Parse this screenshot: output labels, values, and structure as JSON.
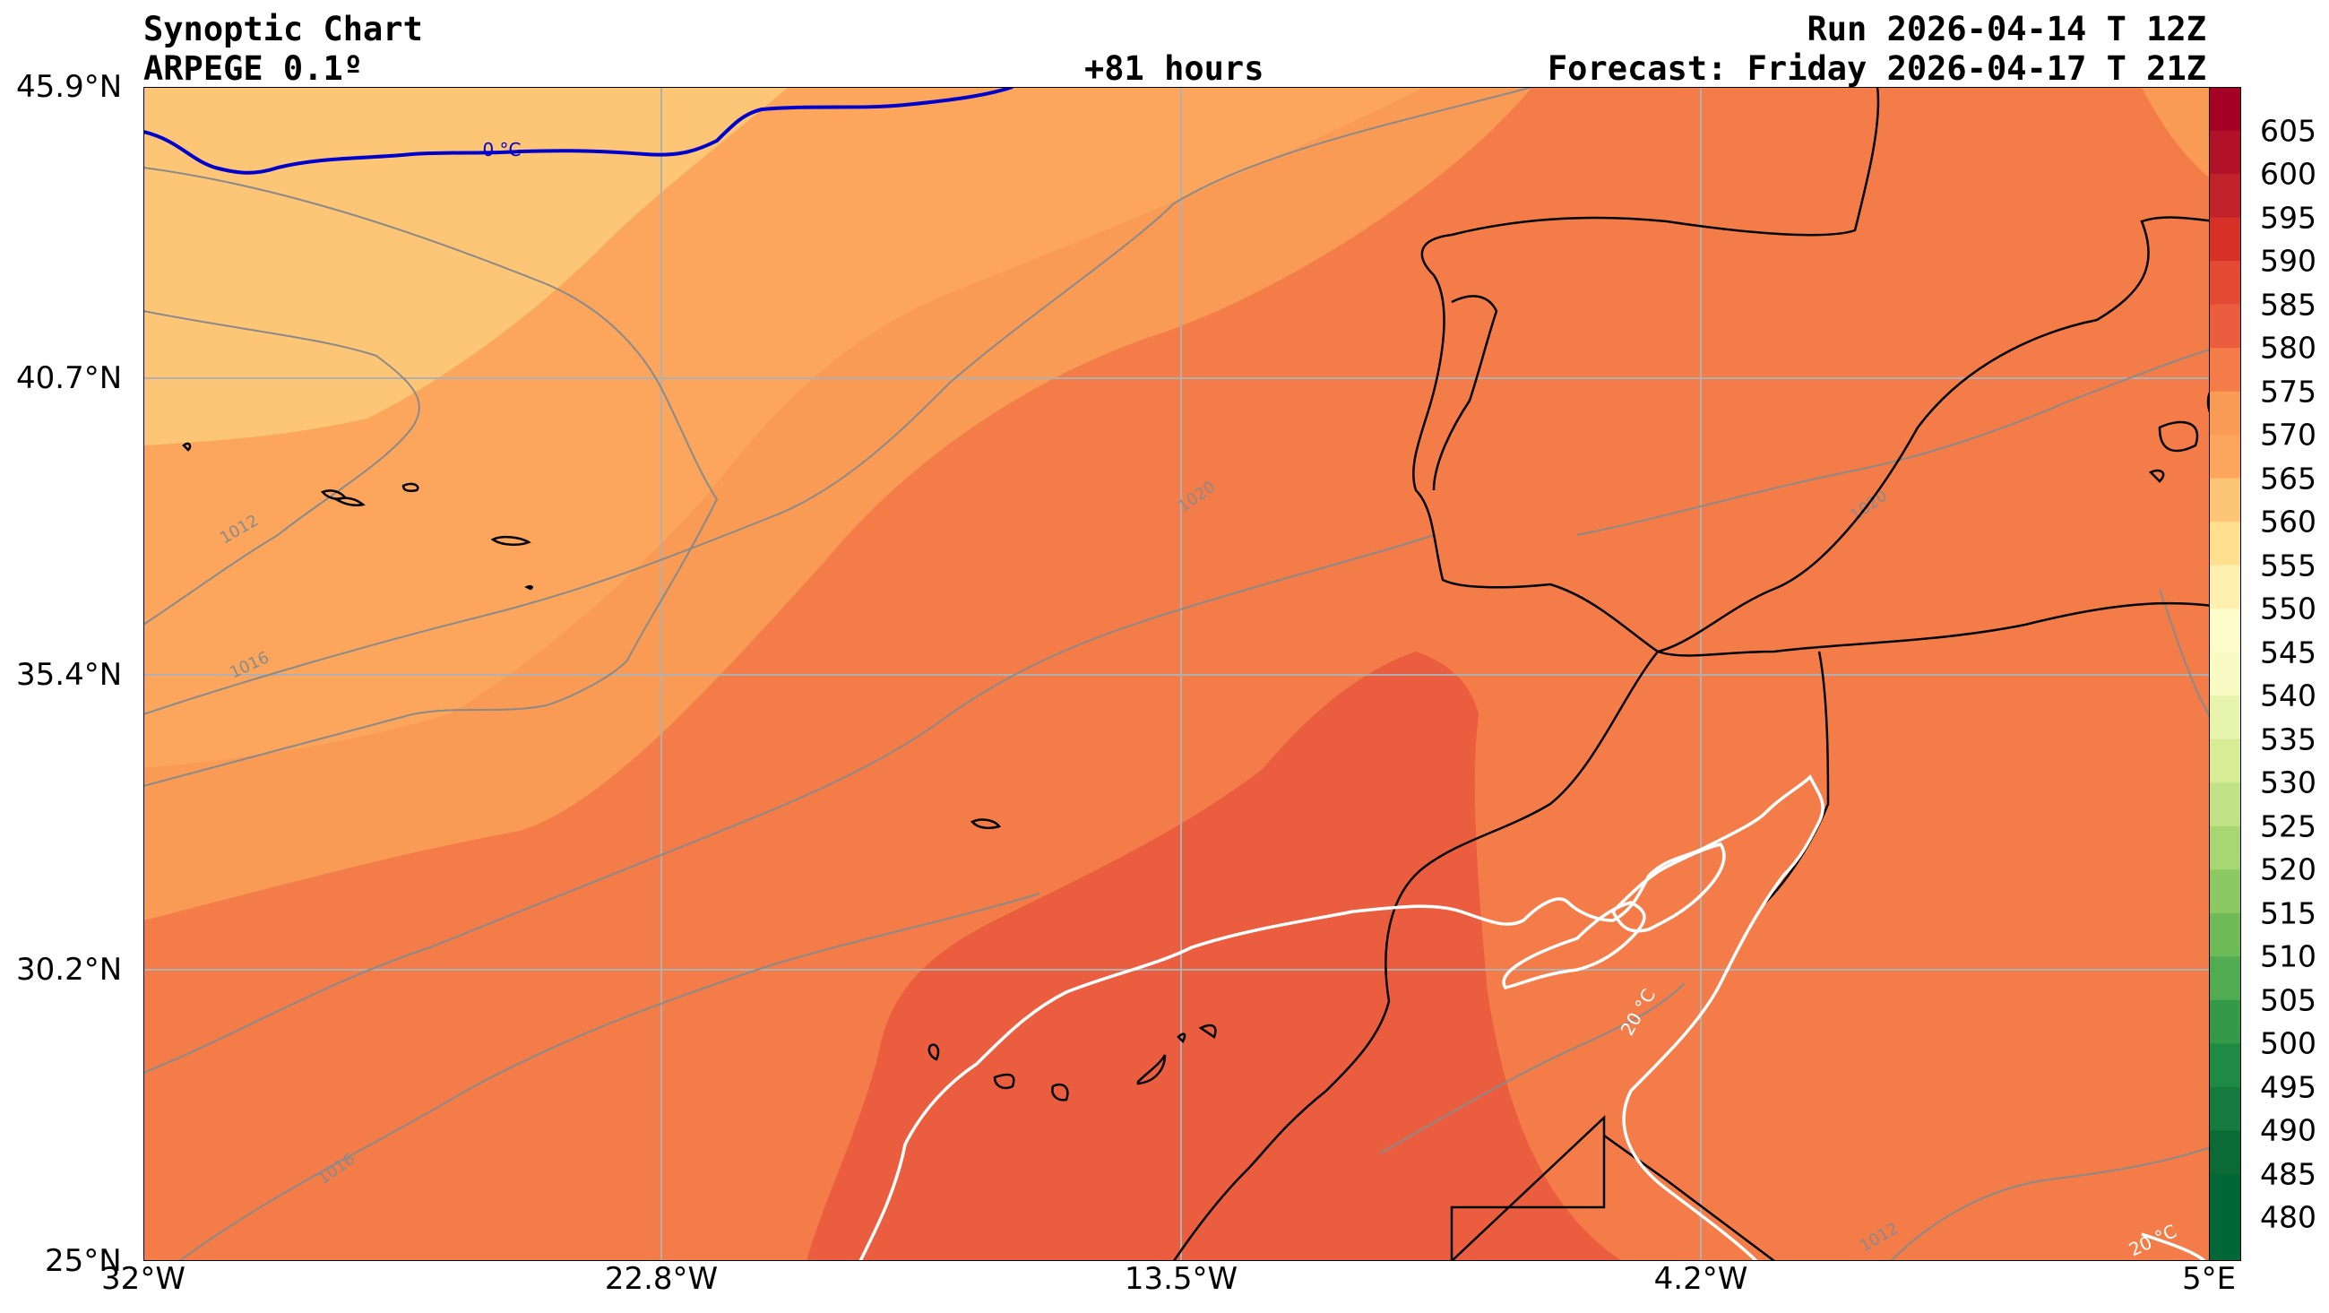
{
  "header": {
    "title": "Synoptic Chart",
    "model": "ARPEGE 0.1º",
    "lead": "+81 hours",
    "run": "Run 2026-04-14 T 12Z",
    "forecast": "Forecast: Friday 2026-04-17 T 21Z"
  },
  "axes": {
    "lat_labels": [
      "45.9°N",
      "40.7°N",
      "35.4°N",
      "30.2°N",
      "25°N"
    ],
    "lon_labels": [
      "32°W",
      "22.8°W",
      "13.5°W",
      "4.2°W",
      "5°E"
    ]
  },
  "contour_labels": {
    "freezing": "0 °C",
    "warm_isotherm": "20 °C",
    "isobars": [
      "1012",
      "1016",
      "1020"
    ]
  },
  "colorbar": {
    "levels": [
      "605",
      "600",
      "595",
      "590",
      "585",
      "580",
      "575",
      "570",
      "565",
      "560",
      "555",
      "550",
      "545",
      "540",
      "535",
      "530",
      "525",
      "520",
      "515",
      "510",
      "505",
      "500",
      "495",
      "490",
      "485",
      "480"
    ]
  },
  "colors": {
    "band_540_545": "#fefbcb",
    "band_555_560": "#fdc676",
    "band_560_565": "#fba65c",
    "band_565_570": "#f99a55",
    "band_570_575": "#f47c48",
    "band_575_580": "#ea5d3e",
    "freezing_line": "#0000cc",
    "warm_line": "#ffffff",
    "coast": "#000000",
    "isobar": "#8a8a8a"
  }
}
